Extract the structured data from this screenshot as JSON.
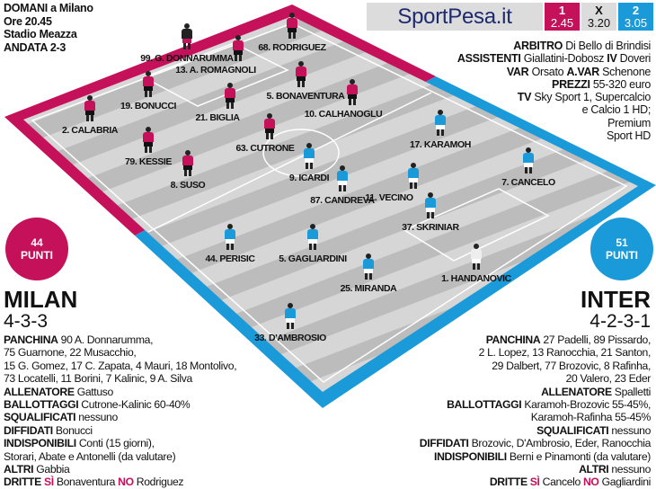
{
  "match": {
    "line1": "DOMANI a Milano",
    "line2": "Ore 20.45",
    "line3": "Stadio Meazza",
    "line4": "ANDATA 2-3"
  },
  "sponsor": {
    "name": "SportPesa.it",
    "odds": [
      {
        "label": "1",
        "value": "2.45"
      },
      {
        "label": "X",
        "value": "3.20"
      },
      {
        "label": "2",
        "value": "3.05"
      }
    ]
  },
  "officials": [
    [
      {
        "k": "ARBITRO",
        "v": " Di Bello di Brindisi"
      }
    ],
    [
      {
        "k": "ASSISTENTI",
        "v": " Giallatini-Dobosz "
      },
      {
        "k": "IV",
        "v": " Doveri"
      }
    ],
    [
      {
        "k": "VAR",
        "v": " Orsato "
      },
      {
        "k": "A.VAR",
        "v": " Schenone"
      }
    ],
    [
      {
        "k": "PREZZI",
        "v": " 55-320 euro"
      }
    ],
    [
      {
        "k": "TV",
        "v": " Sky Sport 1, Supercalcio"
      }
    ],
    [
      {
        "k": "",
        "v": "e Calcio 1 HD;"
      }
    ],
    [
      {
        "k": "",
        "v": "Premium"
      }
    ],
    [
      {
        "k": "",
        "v": "Sport HD"
      }
    ]
  ],
  "colors": {
    "milan": "#c5105a",
    "inter": "#1a9ad8",
    "pitch": "#d4d4d4",
    "stripe": "#bdbdbd"
  },
  "milan": {
    "name": "MILAN",
    "formation": "4-3-3",
    "points": "44",
    "points_label": "PUNTI",
    "players": [
      {
        "n": "99. G. DONNARUMMA",
        "gk": true
      },
      {
        "n": "13. A. ROMAGNOLI"
      },
      {
        "n": "68. RODRIGUEZ"
      },
      {
        "n": "19. BONUCCI"
      },
      {
        "n": "21. BIGLIA"
      },
      {
        "n": "5. BONAVENTURA"
      },
      {
        "n": "10. CALHANOGLU"
      },
      {
        "n": "2. CALABRIA"
      },
      {
        "n": "63. CUTRONE"
      },
      {
        "n": "79. KESSIE"
      },
      {
        "n": "8. SUSO"
      }
    ],
    "notes": [
      [
        {
          "k": "PANCHINA",
          "v": " 90 A. Donnarumma,"
        }
      ],
      [
        {
          "k": "",
          "v": "75 Guarnone, 22 Musacchio,"
        }
      ],
      [
        {
          "k": "",
          "v": "15 G. Gomez, 17 C. Zapata, 4 Mauri, 18 Montolivo,"
        }
      ],
      [
        {
          "k": "",
          "v": "73 Locatelli, 11 Borini, 7 Kalinic, 9 A. Silva"
        }
      ],
      [
        {
          "k": "ALLENATORE",
          "v": " Gattuso"
        }
      ],
      [
        {
          "k": "BALLOTTAGGI",
          "v": " Cutrone-Kalinic 60-40%"
        }
      ],
      [
        {
          "k": "SQUALIFICATI",
          "v": " nessuno"
        }
      ],
      [
        {
          "k": "DIFFIDATI",
          "v": " Bonucci"
        }
      ],
      [
        {
          "k": "INDISPONIBILI",
          "v": " Conti (15 giorni),"
        }
      ],
      [
        {
          "k": "",
          "v": "Storari, Abate e Antonelli (da valutare)"
        }
      ],
      [
        {
          "k": "ALTRI",
          "v": " Gabbia"
        }
      ],
      [
        {
          "k": "DRITTE",
          "v": " "
        },
        {
          "m": "SÌ",
          "v": " Bonaventura "
        },
        {
          "m": "NO",
          "v": " Rodriguez"
        }
      ]
    ]
  },
  "inter": {
    "name": "INTER",
    "formation": "4-2-3-1",
    "points": "51",
    "points_label": "PUNTI",
    "players": [
      {
        "n": "9. ICARDI"
      },
      {
        "n": "87. CANDREVA"
      },
      {
        "n": "11. VECINO"
      },
      {
        "n": "17. KARAMOH"
      },
      {
        "n": "7. CANCELO"
      },
      {
        "n": "37. SKRINIAR"
      },
      {
        "n": "44. PERISIC"
      },
      {
        "n": "5. GAGLIARDINI"
      },
      {
        "n": "25. MIRANDA"
      },
      {
        "n": "1. HANDANOVIC",
        "gk": true
      },
      {
        "n": "33. D'AMBROSIO"
      }
    ],
    "notes": [
      [
        {
          "k": "PANCHINA",
          "v": " 27 Padelli, 89 Pissardo,"
        }
      ],
      [
        {
          "k": "",
          "v": "2 L. Lopez, 13 Ranocchia, 21 Santon,"
        }
      ],
      [
        {
          "k": "",
          "v": "29 Dalbert, 77 Brozovic, 8 Rafinha,"
        }
      ],
      [
        {
          "k": "",
          "v": "20 Valero, 23 Eder"
        }
      ],
      [
        {
          "k": "ALLENATORE",
          "v": " Spalletti"
        }
      ],
      [
        {
          "k": "BALLOTTAGGI",
          "v": " Karamoh-Brozovic 55-45%,"
        }
      ],
      [
        {
          "k": "",
          "v": "Karamoh-Rafinha 55-45%"
        }
      ],
      [
        {
          "k": "SQUALIFICATI",
          "v": " nessuno"
        }
      ],
      [
        {
          "k": "DIFFIDATI",
          "v": " Brozovic, D'Ambrosio, Eder, Ranocchia"
        }
      ],
      [
        {
          "k": "INDISPONIBILI",
          "v": " Berni e Pinamonti (da valutare)"
        }
      ],
      [
        {
          "k": "ALTRI",
          "v": " nessuno"
        }
      ],
      [
        {
          "k": "DRITTE",
          "v": " "
        },
        {
          "m": "SÌ",
          "v": " Cancelo "
        },
        {
          "m": "NO",
          "v": " Gagliardini"
        }
      ]
    ]
  }
}
